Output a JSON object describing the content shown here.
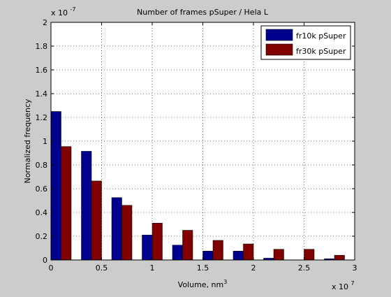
{
  "chart_data": {
    "type": "bar",
    "title": "Number of frames pSuper / Hela L",
    "xlabel": "Volume, nm",
    "xlabel_sup": "3",
    "ylabel": "Normalized frequency",
    "x_exponent": "x 10",
    "x_exponent_power": "7",
    "y_exponent": "x 10",
    "y_exponent_power": "-7",
    "xlim": [
      0,
      3
    ],
    "ylim": [
      0,
      2
    ],
    "x_ticks": [
      0,
      0.5,
      1,
      1.5,
      2,
      2.5,
      3
    ],
    "x_tick_labels": [
      "0",
      "0.5",
      "1",
      "1.5",
      "2",
      "2.5",
      "3"
    ],
    "y_ticks": [
      0,
      0.2,
      0.4,
      0.6,
      0.8,
      1,
      1.2,
      1.4,
      1.6,
      1.8,
      2
    ],
    "y_tick_labels": [
      "0",
      "0.2",
      "0.4",
      "0.6",
      "0.8",
      "1",
      "1.2",
      "1.4",
      "1.6",
      "1.8",
      "2"
    ],
    "grid": true,
    "legend_position": "top-right",
    "x": [
      0.1,
      0.4,
      0.7,
      1.0,
      1.3,
      1.6,
      1.9,
      2.2,
      2.5,
      2.8
    ],
    "bar_width": 0.1,
    "series": [
      {
        "name": "fr10k pSuper",
        "color": "#00008f",
        "values": [
          1.25,
          0.915,
          0.525,
          0.21,
          0.125,
          0.075,
          0.075,
          0.015,
          0.0,
          0.01
        ]
      },
      {
        "name": "fr30k pSuper",
        "color": "#800000",
        "values": [
          0.955,
          0.665,
          0.46,
          0.31,
          0.25,
          0.165,
          0.135,
          0.09,
          0.09,
          0.04
        ]
      }
    ]
  }
}
